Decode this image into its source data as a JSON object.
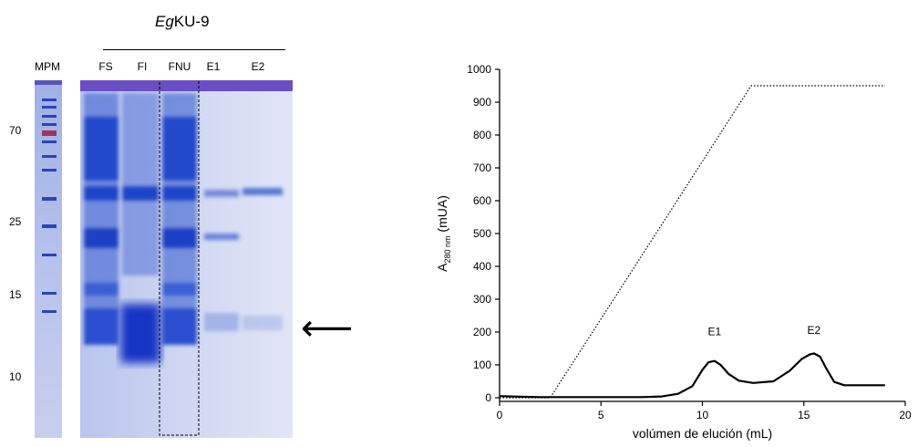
{
  "gel": {
    "title_italic": "Eg",
    "title_rest": "KU-9",
    "marker_label": "MPM",
    "lanes": [
      {
        "label": "FS"
      },
      {
        "label": "FI"
      },
      {
        "label": "FNU"
      },
      {
        "label": "E1"
      },
      {
        "label": "E2"
      }
    ],
    "mw_markers": [
      "70",
      "25",
      "15",
      "10"
    ],
    "arrow": "⟵",
    "colors": {
      "gel_blue": "#3f5fd0",
      "gel_background": "#c9d2ef",
      "band_dark": "#1a3fc8"
    }
  },
  "chart_data": {
    "type": "line",
    "xlabel": "volúmen de elución (mL)",
    "ylabel_main": "A",
    "ylabel_sub": "280 nm",
    "ylabel_unit": "(mUA)",
    "xlim": [
      0,
      20
    ],
    "ylim": [
      0,
      1000
    ],
    "xticks": [
      0,
      5,
      10,
      15,
      20
    ],
    "yticks": [
      0,
      100,
      200,
      300,
      400,
      500,
      600,
      700,
      800,
      900,
      1000
    ],
    "grid": false,
    "series": [
      {
        "style": "solid",
        "x": [
          0,
          1,
          2,
          3,
          5,
          7,
          8,
          8.8,
          9.5,
          10,
          10.3,
          10.6,
          10.9,
          11.3,
          11.8,
          12.5,
          13.5,
          14.3,
          14.9,
          15.3,
          15.5,
          15.8,
          16.1,
          16.5,
          17,
          18,
          19
        ],
        "y": [
          5,
          3,
          2,
          2,
          2,
          2,
          4,
          12,
          35,
          85,
          108,
          112,
          100,
          72,
          52,
          45,
          50,
          82,
          118,
          132,
          135,
          125,
          90,
          48,
          38,
          38,
          38
        ]
      },
      {
        "style": "dotted",
        "x": [
          0,
          2.5,
          12.4,
          19
        ],
        "y": [
          0,
          0,
          950,
          950
        ]
      }
    ],
    "annotations": [
      {
        "text": "E1",
        "x": 10.6,
        "y": 190
      },
      {
        "text": "E2",
        "x": 15.5,
        "y": 195
      }
    ]
  }
}
